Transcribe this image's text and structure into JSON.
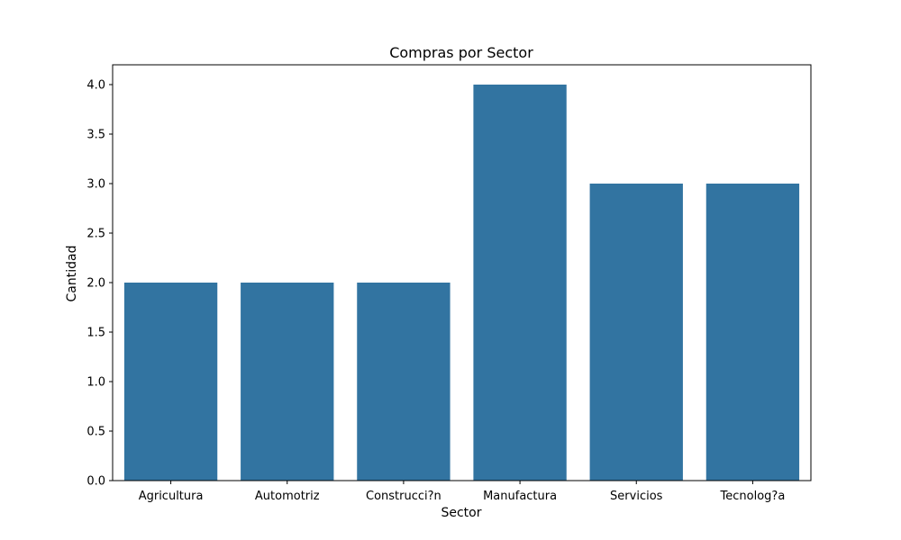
{
  "chart_data": {
    "type": "bar",
    "title": "Compras por Sector",
    "xlabel": "Sector",
    "ylabel": "Cantidad",
    "categories": [
      "Agricultura",
      "Automotriz",
      "Construcci?n",
      "Manufactura",
      "Servicios",
      "Tecnolog?a"
    ],
    "values": [
      2,
      2,
      2,
      4,
      3,
      3
    ],
    "ylim": [
      0,
      4.2
    ],
    "yticks": [
      "0.0",
      "0.5",
      "1.0",
      "1.5",
      "2.0",
      "2.5",
      "3.0",
      "3.5",
      "4.0"
    ],
    "bar_color": "#3274a1",
    "grid": false,
    "legend": false
  }
}
